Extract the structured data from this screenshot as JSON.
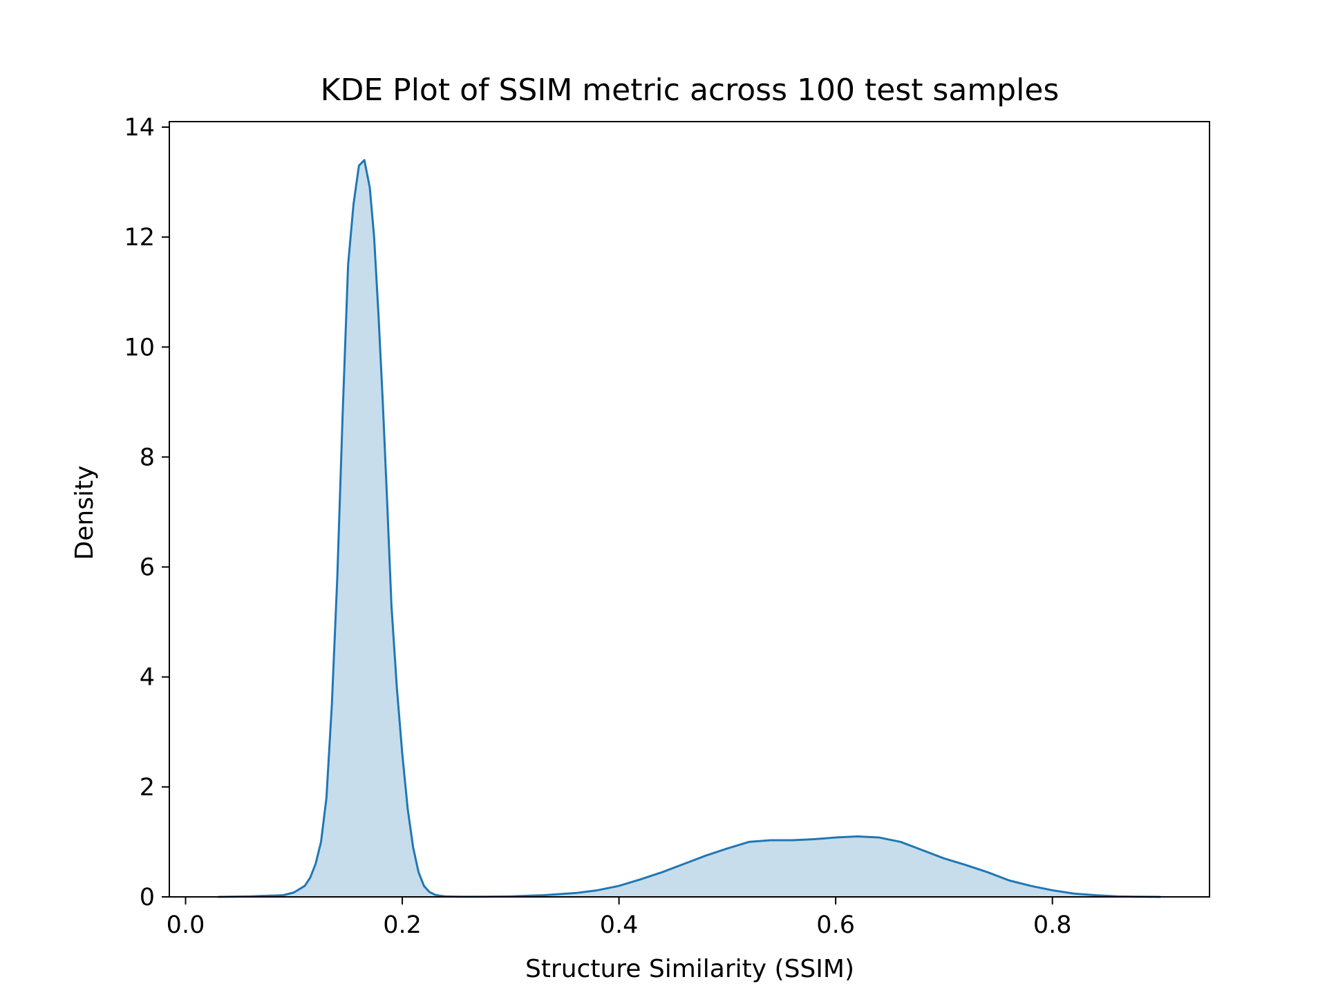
{
  "chart_data": {
    "type": "area",
    "title": "KDE Plot of SSIM metric across 100 test samples",
    "xlabel": "Structure Similarity (SSIM)",
    "ylabel": "Density",
    "xlim": [
      -0.015,
      0.945
    ],
    "ylim": [
      0,
      14.1
    ],
    "xticks": [
      0.0,
      0.2,
      0.4,
      0.6,
      0.8
    ],
    "xtick_labels": [
      "0.0",
      "0.2",
      "0.4",
      "0.6",
      "0.8"
    ],
    "yticks": [
      0,
      2,
      4,
      6,
      8,
      10,
      12,
      14
    ],
    "ytick_labels": [
      "0",
      "2",
      "4",
      "6",
      "8",
      "10",
      "12",
      "14"
    ],
    "grid": false,
    "legend": "none",
    "colors": {
      "line": "#1f77b4",
      "fill": "#1f77b4",
      "fill_opacity": 0.25
    },
    "series": [
      {
        "x": [
          0.03,
          0.06,
          0.09,
          0.1,
          0.11,
          0.115,
          0.12,
          0.125,
          0.13,
          0.135,
          0.14,
          0.145,
          0.15,
          0.155,
          0.16,
          0.165,
          0.17,
          0.174,
          0.178,
          0.182,
          0.186,
          0.19,
          0.195,
          0.2,
          0.205,
          0.21,
          0.215,
          0.22,
          0.225,
          0.23,
          0.235,
          0.24,
          0.25,
          0.26,
          0.28,
          0.3,
          0.33,
          0.36,
          0.38,
          0.4,
          0.42,
          0.44,
          0.46,
          0.48,
          0.5,
          0.52,
          0.54,
          0.56,
          0.58,
          0.6,
          0.62,
          0.64,
          0.66,
          0.68,
          0.7,
          0.72,
          0.74,
          0.76,
          0.78,
          0.8,
          0.82,
          0.84,
          0.86,
          0.88,
          0.9
        ],
        "y": [
          0.0,
          0.01,
          0.03,
          0.08,
          0.2,
          0.35,
          0.6,
          1.0,
          1.8,
          3.5,
          5.8,
          8.8,
          11.5,
          12.6,
          13.3,
          13.4,
          12.9,
          12.0,
          10.6,
          9.0,
          7.2,
          5.3,
          3.8,
          2.6,
          1.6,
          0.9,
          0.45,
          0.2,
          0.09,
          0.04,
          0.02,
          0.01,
          0.005,
          0.003,
          0.005,
          0.01,
          0.03,
          0.07,
          0.12,
          0.2,
          0.32,
          0.45,
          0.6,
          0.75,
          0.88,
          1.0,
          1.03,
          1.03,
          1.05,
          1.08,
          1.1,
          1.08,
          1.0,
          0.85,
          0.7,
          0.58,
          0.45,
          0.3,
          0.2,
          0.12,
          0.06,
          0.03,
          0.01,
          0.003,
          0.0
        ]
      }
    ]
  }
}
